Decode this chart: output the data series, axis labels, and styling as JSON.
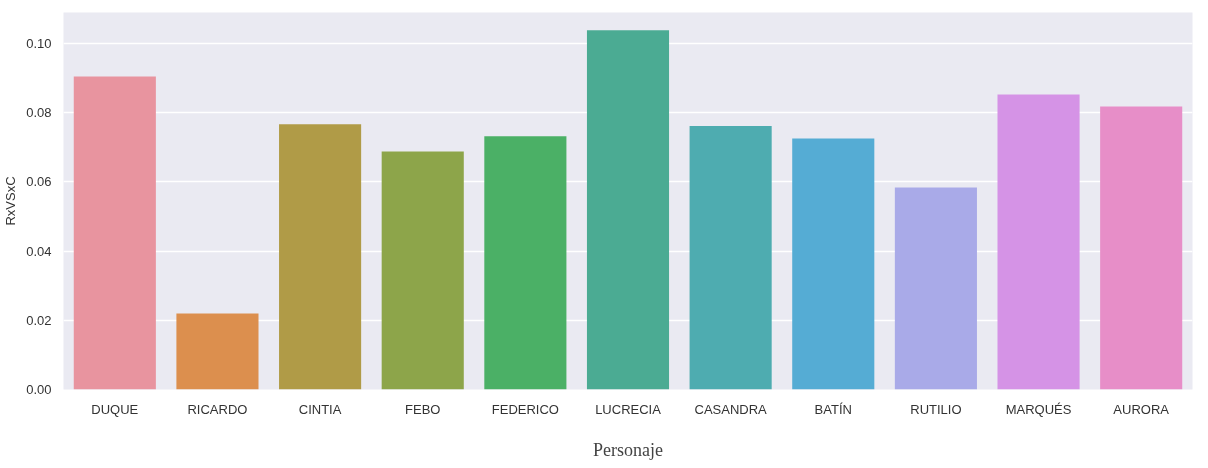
{
  "chart_data": {
    "type": "bar",
    "xlabel": "Personaje",
    "ylabel": "RxVSxC",
    "categories": [
      "DUQUE",
      "RICARDO",
      "CINTIA",
      "FEBO",
      "FEDERICO",
      "LUCRECIA",
      "CASANDRA",
      "BATÍN",
      "RUTILIO",
      "MARQUÉS",
      "AURORA"
    ],
    "values": [
      0.0905,
      0.022,
      0.0767,
      0.0688,
      0.0732,
      0.1039,
      0.0762,
      0.0726,
      0.0584,
      0.0853,
      0.0818
    ],
    "colors": [
      "#e8949f",
      "#dc8f4e",
      "#b09b47",
      "#8da54a",
      "#4bb066",
      "#4bab93",
      "#4eacb0",
      "#55acd4",
      "#a9aae8",
      "#d593e6",
      "#e78ec8"
    ],
    "ylim": [
      0,
      0.109
    ],
    "yticks": [
      {
        "value": 0,
        "label": "0.00"
      },
      {
        "value": 0.02,
        "label": "0.02"
      },
      {
        "value": 0.04,
        "label": "0.04"
      },
      {
        "value": 0.06,
        "label": "0.06"
      },
      {
        "value": 0.08,
        "label": "0.08"
      },
      {
        "value": 0.1,
        "label": "0.10"
      }
    ],
    "grid": "y"
  }
}
